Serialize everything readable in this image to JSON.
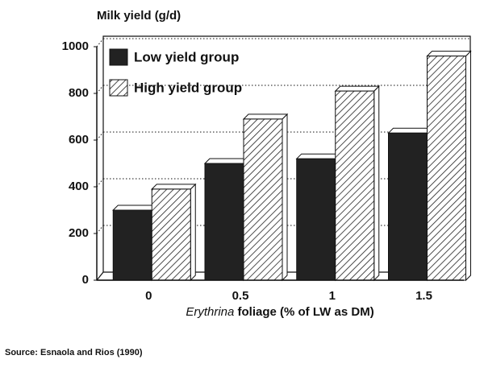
{
  "chart_data": {
    "type": "bar3d",
    "ylabel": "Milk yield (g/d)",
    "xlabel_italic": "Erythrina",
    "xlabel": "foliage (% of LW as DM)",
    "source": "Source: Esnaola and Rios (1990)",
    "categories": [
      "0",
      "0.5",
      "1",
      "1.5"
    ],
    "series": [
      {
        "name": "Low yield group",
        "color": "#222222",
        "pattern": "solid",
        "values": [
          300,
          500,
          520,
          630
        ]
      },
      {
        "name": "High yield group",
        "color": "#222222",
        "pattern": "hatch",
        "values": [
          390,
          690,
          810,
          960
        ]
      }
    ],
    "ylim": [
      0,
      1000
    ],
    "yticks": [
      0,
      200,
      400,
      600,
      800,
      1000
    ],
    "grid": true,
    "legend": "upper left"
  }
}
